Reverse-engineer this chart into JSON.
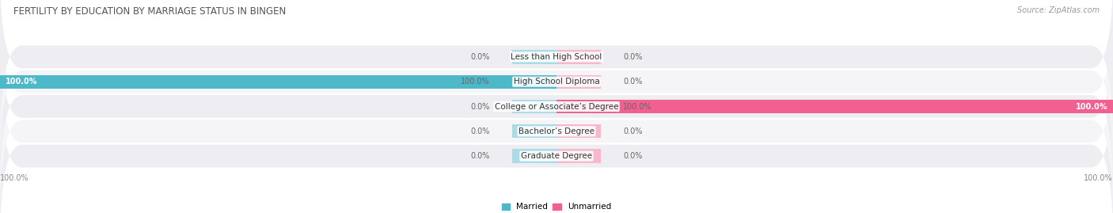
{
  "title": "FERTILITY BY EDUCATION BY MARRIAGE STATUS IN BINGEN",
  "source": "Source: ZipAtlas.com",
  "categories": [
    "Less than High School",
    "High School Diploma",
    "College or Associate’s Degree",
    "Bachelor’s Degree",
    "Graduate Degree"
  ],
  "married_values": [
    0.0,
    100.0,
    0.0,
    0.0,
    0.0
  ],
  "unmarried_values": [
    0.0,
    0.0,
    100.0,
    0.0,
    0.0
  ],
  "married_color": "#4db8c8",
  "unmarried_color": "#f06090",
  "married_color_light": "#a8dce8",
  "unmarried_color_light": "#f8b8cc",
  "row_bg_odd": "#ededf2",
  "row_bg_even": "#f5f5f8",
  "axis_limit": 100.0,
  "label_fontsize": 7.5,
  "title_fontsize": 8.5,
  "source_fontsize": 7,
  "value_fontsize": 7,
  "legend_fontsize": 7.5,
  "background_color": "#ffffff"
}
